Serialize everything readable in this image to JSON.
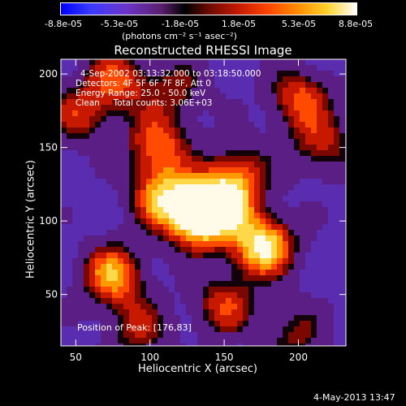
{
  "colorbar": {
    "ticks": [
      "-8.8e-05",
      "-5.3e-05",
      "-1.8e-05",
      "1.8e-05",
      "5.3e-05",
      "8.8e-05"
    ],
    "units_line": "(photons cm⁻² s⁻¹ asec⁻²)"
  },
  "chart_data": {
    "type": "heatmap",
    "title": "Reconstructed RHESSI Image",
    "xlabel": "Heliocentric X (arcsec)",
    "ylabel": "Heliocentric Y (arcsec)",
    "xlim": [
      40,
      232
    ],
    "ylim": [
      15,
      210
    ],
    "xticks": [
      50,
      100,
      150,
      200
    ],
    "yticks": [
      50,
      100,
      150,
      200
    ],
    "colorscale_range": [
      -8.8e-05,
      8.8e-05
    ],
    "annotations": [
      "4-Sep-2002 03:13:32.000 to 03:18:50.000",
      "Detectors: 4F 5F 6F 7F 8F, Att 0",
      "Energy Range: 25.0 - 50.0 keV",
      "Clean     Total counts: 3.06E+03"
    ],
    "peak_label": "Position of Peak: [176,83]",
    "peak_position": [
      176,
      83
    ],
    "sources": [
      {
        "x": 132,
        "y": 102,
        "intensity": 1.0
      },
      {
        "x": 176,
        "y": 83,
        "intensity": 1.0
      },
      {
        "x": 108,
        "y": 117,
        "intensity": 0.75
      },
      {
        "x": 148,
        "y": 112,
        "intensity": 0.75
      },
      {
        "x": 75,
        "y": 63,
        "intensity": 0.8
      },
      {
        "x": 105,
        "y": 152,
        "intensity": 0.65
      },
      {
        "x": 78,
        "y": 196,
        "intensity": 0.6
      },
      {
        "x": 200,
        "y": 184,
        "intensity": 0.6
      },
      {
        "x": 160,
        "y": 132,
        "intensity": 0.55
      },
      {
        "x": 53,
        "y": 172,
        "intensity": 0.5
      },
      {
        "x": 150,
        "y": 42,
        "intensity": 0.55
      },
      {
        "x": 92,
        "y": 26,
        "intensity": 0.45
      },
      {
        "x": 216,
        "y": 152,
        "intensity": 0.5
      },
      {
        "x": 198,
        "y": 22,
        "intensity": 0.4
      },
      {
        "x": 118,
        "y": 190,
        "intensity": 0.4
      }
    ]
  },
  "footer": {
    "timestamp": "4-May-2013 13:47"
  }
}
